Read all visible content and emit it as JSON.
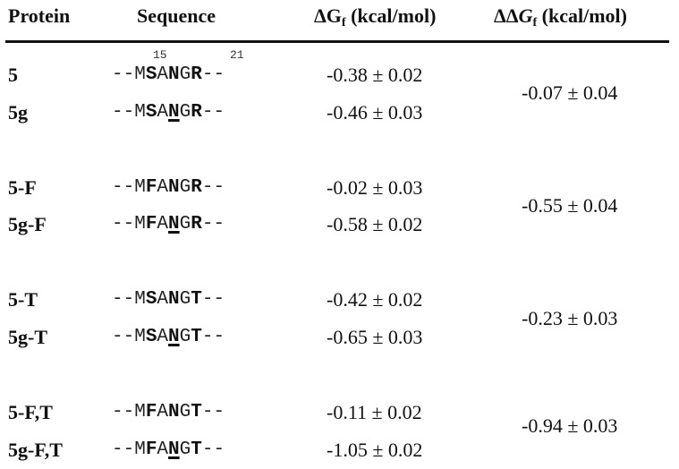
{
  "header": {
    "protein": "Protein",
    "sequence": "Sequence",
    "dg_delta": "ΔG",
    "dg_sub": "f",
    "dg_unit": " (kcal/mol)",
    "ddg_delta": "ΔΔ",
    "ddg_g": "G",
    "ddg_sub": "f",
    "ddg_unit": " (kcal/mol)"
  },
  "position_labels": {
    "start": "15",
    "end": "21"
  },
  "rows": [
    {
      "protein": "5",
      "seq": {
        "lead": "--M",
        "p16": "S",
        "p17": "A",
        "p18": "N",
        "p19": "G",
        "p20": "R",
        "tail": "--"
      },
      "dgf": "-0.38 ± 0.02"
    },
    {
      "protein": "5g",
      "seq": {
        "lead": "--M",
        "p16": "S",
        "p17": "A",
        "p18": "N",
        "p19": "G",
        "p20": "R",
        "tail": "--"
      },
      "dgf": "-0.46 ± 0.03"
    },
    {
      "protein": "5-F",
      "seq": {
        "lead": "--M",
        "p16": "F",
        "p17": "A",
        "p18": "N",
        "p19": "G",
        "p20": "R",
        "tail": "--"
      },
      "dgf": "-0.02 ± 0.03"
    },
    {
      "protein": "5g-F",
      "seq": {
        "lead": "--M",
        "p16": "F",
        "p17": "A",
        "p18": "N",
        "p19": "G",
        "p20": "R",
        "tail": "--"
      },
      "dgf": "-0.58 ± 0.02"
    },
    {
      "protein": "5-T",
      "seq": {
        "lead": "--M",
        "p16": "S",
        "p17": "A",
        "p18": "N",
        "p19": "G",
        "p20": "T",
        "tail": "--"
      },
      "dgf": "-0.42 ± 0.02"
    },
    {
      "protein": "5g-T",
      "seq": {
        "lead": "--M",
        "p16": "S",
        "p17": "A",
        "p18": "N",
        "p19": "G",
        "p20": "T",
        "tail": "--"
      },
      "dgf": "-0.65 ± 0.03"
    },
    {
      "protein": "5-F,T",
      "seq": {
        "lead": "--M",
        "p16": "F",
        "p17": "A",
        "p18": "N",
        "p19": "G",
        "p20": "T",
        "tail": "--"
      },
      "dgf": "-0.11 ± 0.02"
    },
    {
      "protein": "5g-F,T",
      "seq": {
        "lead": "--M",
        "p16": "F",
        "p17": "A",
        "p18": "N",
        "p19": "G",
        "p20": "T",
        "tail": "--"
      },
      "dgf": "-1.05 ± 0.02"
    }
  ],
  "pairs": [
    {
      "ddgf": "-0.07 ± 0.04"
    },
    {
      "ddgf": "-0.55 ± 0.04"
    },
    {
      "ddgf": "-0.23 ± 0.03"
    },
    {
      "ddgf": "-0.94 ± 0.03"
    }
  ]
}
